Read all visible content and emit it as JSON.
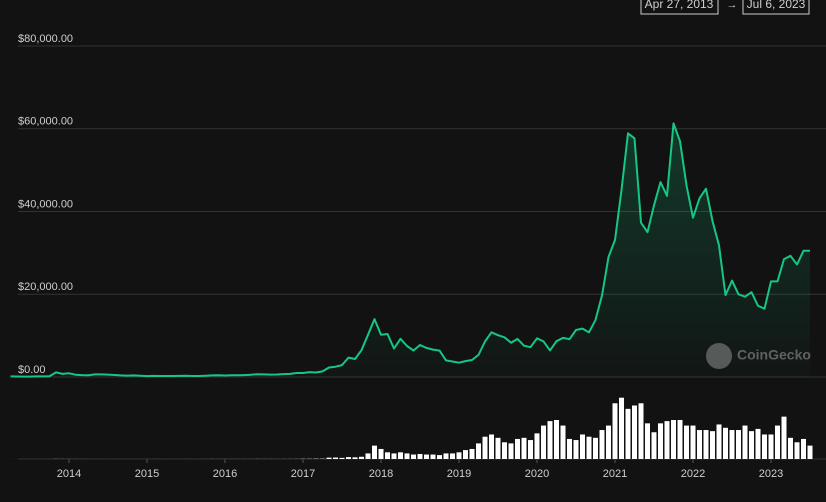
{
  "chart_data": {
    "type": "line",
    "range_start": "Apr 27, 2013",
    "range_arrow": "→",
    "range_end": "Jul 6, 2023",
    "watermark": "CoinGecko",
    "x": [
      "2013-04",
      "2013-05",
      "2013-06",
      "2013-07",
      "2013-08",
      "2013-09",
      "2013-10",
      "2013-11",
      "2013-12",
      "2014-01",
      "2014-02",
      "2014-03",
      "2014-04",
      "2014-05",
      "2014-06",
      "2014-07",
      "2014-08",
      "2014-09",
      "2014-10",
      "2014-11",
      "2014-12",
      "2015-01",
      "2015-02",
      "2015-03",
      "2015-04",
      "2015-05",
      "2015-06",
      "2015-07",
      "2015-08",
      "2015-09",
      "2015-10",
      "2015-11",
      "2015-12",
      "2016-01",
      "2016-02",
      "2016-03",
      "2016-04",
      "2016-05",
      "2016-06",
      "2016-07",
      "2016-08",
      "2016-09",
      "2016-10",
      "2016-11",
      "2016-12",
      "2017-01",
      "2017-02",
      "2017-03",
      "2017-04",
      "2017-05",
      "2017-06",
      "2017-07",
      "2017-08",
      "2017-09",
      "2017-10",
      "2017-11",
      "2017-12",
      "2018-01",
      "2018-02",
      "2018-03",
      "2018-04",
      "2018-05",
      "2018-06",
      "2018-07",
      "2018-08",
      "2018-09",
      "2018-10",
      "2018-11",
      "2018-12",
      "2019-01",
      "2019-02",
      "2019-03",
      "2019-04",
      "2019-05",
      "2019-06",
      "2019-07",
      "2019-08",
      "2019-09",
      "2019-10",
      "2019-11",
      "2019-12",
      "2020-01",
      "2020-02",
      "2020-03",
      "2020-04",
      "2020-05",
      "2020-06",
      "2020-07",
      "2020-08",
      "2020-09",
      "2020-10",
      "2020-11",
      "2020-12",
      "2021-01",
      "2021-02",
      "2021-03",
      "2021-04",
      "2021-05",
      "2021-06",
      "2021-07",
      "2021-08",
      "2021-09",
      "2021-10",
      "2021-11",
      "2021-12",
      "2022-01",
      "2022-02",
      "2022-03",
      "2022-04",
      "2022-05",
      "2022-06",
      "2022-07",
      "2022-08",
      "2022-09",
      "2022-10",
      "2022-11",
      "2022-12",
      "2023-01",
      "2023-02",
      "2023-03",
      "2023-04",
      "2023-05",
      "2023-06",
      "2023-07"
    ],
    "series": [
      {
        "color": "#16c784",
        "values": [
          135,
          129,
          97,
          106,
          135,
          133,
          204,
          1100,
          750,
          900,
          560,
          460,
          445,
          630,
          640,
          585,
          480,
          390,
          340,
          378,
          320,
          218,
          254,
          244,
          236,
          230,
          263,
          284,
          230,
          236,
          314,
          378,
          430,
          369,
          437,
          416,
          448,
          531,
          673,
          624,
          575,
          609,
          700,
          742,
          963,
          970,
          1190,
          1080,
          1350,
          2300,
          2480,
          2870,
          4700,
          4340,
          6470,
          10200,
          14000,
          10200,
          10400,
          6900,
          9240,
          7500,
          6400,
          7730,
          7040,
          6630,
          6370,
          4020,
          3740,
          3460,
          3850,
          4100,
          5350,
          8570,
          10800,
          10100,
          9600,
          8300,
          9200,
          7560,
          7200,
          9350,
          8600,
          6440,
          8660,
          9460,
          9140,
          11350,
          11700,
          10780,
          13800,
          19700,
          29000,
          33100,
          45200,
          58900,
          57700,
          37300,
          35000,
          41500,
          47100,
          43800,
          61300,
          57000,
          46300,
          38500,
          43200,
          45500,
          37700,
          31800,
          19800,
          23300,
          20000,
          19400,
          20500,
          17200,
          16500,
          23100,
          23100,
          28500,
          29300,
          27200,
          30500,
          30500
        ]
      },
      {
        "color": "#ffffff",
        "axis": "y2",
        "values": [
          0.02,
          0.02,
          0.01,
          0.01,
          0.01,
          0.01,
          0.02,
          0.1,
          0.06,
          0.05,
          0.04,
          0.03,
          0.02,
          0.02,
          0.02,
          0.02,
          0.02,
          0.02,
          0.02,
          0.02,
          0.02,
          0.03,
          0.03,
          0.03,
          0.02,
          0.02,
          0.02,
          0.03,
          0.03,
          0.02,
          0.03,
          0.08,
          0.06,
          0.05,
          0.05,
          0.04,
          0.04,
          0.05,
          0.1,
          0.08,
          0.06,
          0.06,
          0.07,
          0.08,
          0.1,
          0.2,
          0.2,
          0.3,
          0.3,
          1.2,
          1.3,
          1,
          1.7,
          1.5,
          2,
          5,
          12,
          9,
          6,
          5,
          6,
          5,
          4,
          4.5,
          4,
          4,
          3.5,
          5,
          5,
          6,
          8,
          9,
          14,
          20,
          22,
          19,
          15,
          14,
          18,
          19,
          17,
          23,
          30,
          34,
          35,
          30,
          18,
          17,
          22,
          20,
          19,
          26,
          30,
          50,
          55,
          45,
          48,
          50,
          32,
          24,
          32,
          34,
          35,
          35,
          30,
          30,
          26,
          26,
          25,
          31,
          28,
          26,
          26,
          30,
          25,
          27,
          22,
          22,
          30,
          38,
          19,
          15,
          18,
          12
        ]
      }
    ],
    "xlim": [
      "2013-04",
      "2023-07"
    ],
    "xticks": [
      2014,
      2015,
      2016,
      2017,
      2018,
      2019,
      2020,
      2021,
      2022,
      2023
    ],
    "ylim": [
      0,
      80000
    ],
    "yticks": [
      {
        "value": 0,
        "label": "$0.00"
      },
      {
        "value": 20000,
        "label": "$20,000.00"
      },
      {
        "value": 40000,
        "label": "$40,000.00"
      },
      {
        "value": 60000,
        "label": "$60,000.00"
      },
      {
        "value": 80000,
        "label": "$80,000.00"
      }
    ],
    "y2lim": [
      0,
      70
    ],
    "grid": true
  }
}
